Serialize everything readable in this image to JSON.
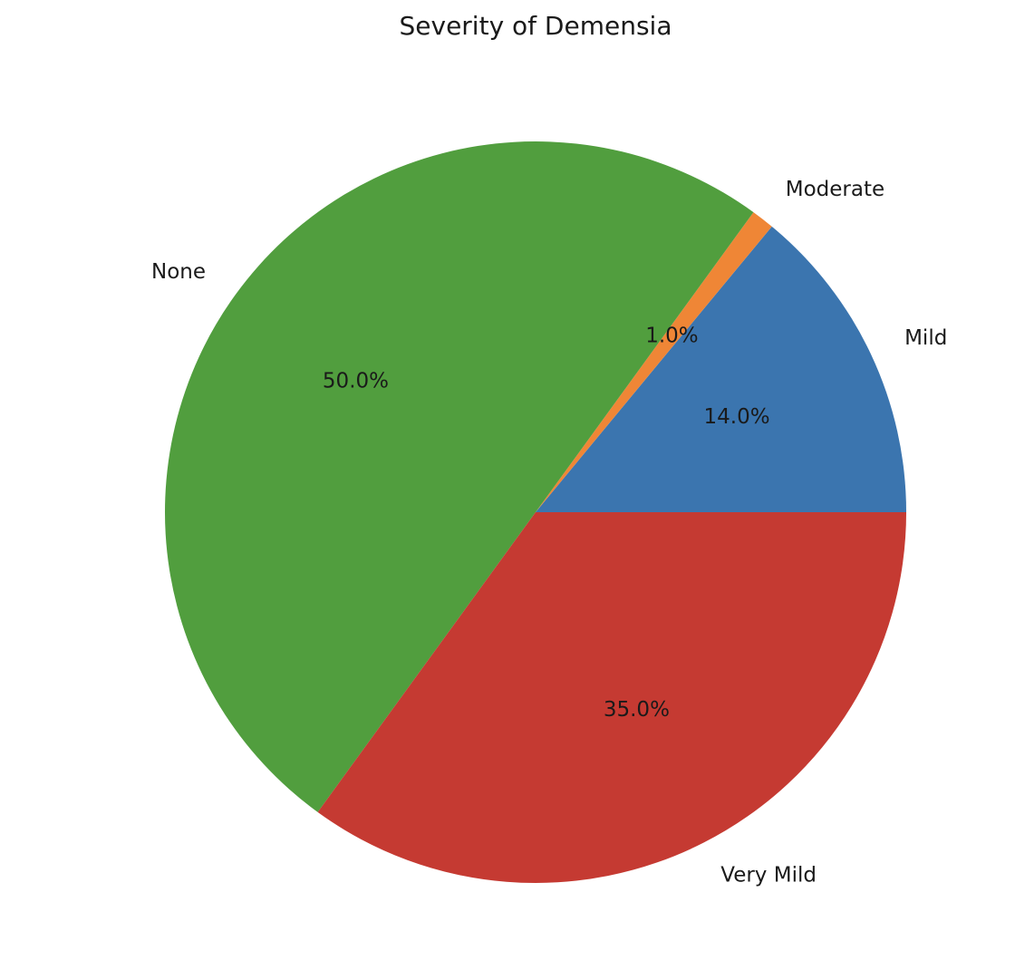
{
  "chart_data": {
    "type": "pie",
    "title": "Severity of Demensia",
    "slices": [
      {
        "label": "Mild",
        "value": 14.0,
        "pct_label": "14.0%",
        "color": "#3b75af"
      },
      {
        "label": "Moderate",
        "value": 1.0,
        "pct_label": "1.0%",
        "color": "#ef8636"
      },
      {
        "label": "None",
        "value": 50.0,
        "pct_label": "50.0%",
        "color": "#519e3e"
      },
      {
        "label": "Very Mild",
        "value": 35.0,
        "pct_label": "35.0%",
        "color": "#c53a32"
      }
    ],
    "start_angle": 0,
    "direction": "counterclockwise",
    "legend": false
  }
}
